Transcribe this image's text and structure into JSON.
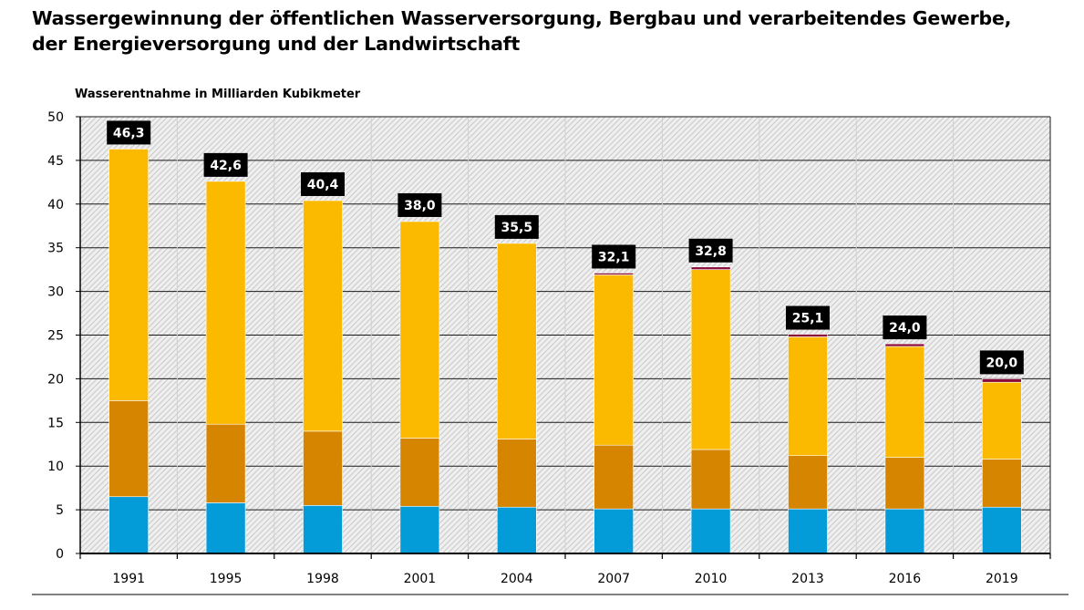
{
  "title_lines": [
    "Wassergewinnung der öffentlichen Wasserversorgung, Bergbau und verarbeitendes Gewerbe,",
    "der Energieversorgung und der Landwirtschaft"
  ],
  "chart_data": {
    "type": "bar",
    "stacked": true,
    "ylabel": "Wasserentnahme in Milliarden Kubikmeter",
    "ylim": [
      0,
      50
    ],
    "yticks": [
      "0",
      "5",
      "10",
      "15",
      "20",
      "25",
      "30",
      "35",
      "40",
      "45",
      "50"
    ],
    "grid": true,
    "categories": [
      "1991",
      "1995",
      "1998",
      "2001",
      "2004",
      "2007",
      "2010",
      "2013",
      "2016",
      "2019"
    ],
    "totals_labels": [
      "46,3",
      "42,6",
      "40,4",
      "38,0",
      "35,5",
      "32,1",
      "32,8",
      "25,1",
      "24,0",
      "20,0"
    ],
    "series": [
      {
        "color": "#049cd8",
        "values": [
          6.5,
          5.8,
          5.5,
          5.4,
          5.3,
          5.1,
          5.1,
          5.1,
          5.1,
          5.3
        ]
      },
      {
        "color": "#d68500",
        "values": [
          11.0,
          9.0,
          8.5,
          7.8,
          7.8,
          7.3,
          6.8,
          6.1,
          5.9,
          5.5
        ]
      },
      {
        "color": "#fbb900",
        "values": [
          28.8,
          27.8,
          26.4,
          24.8,
          22.4,
          19.5,
          20.6,
          13.6,
          12.7,
          8.8
        ]
      },
      {
        "color": "#8a0c3c",
        "values": [
          0,
          0,
          0,
          0,
          0,
          0.2,
          0.3,
          0.3,
          0.3,
          0.4
        ]
      }
    ]
  }
}
